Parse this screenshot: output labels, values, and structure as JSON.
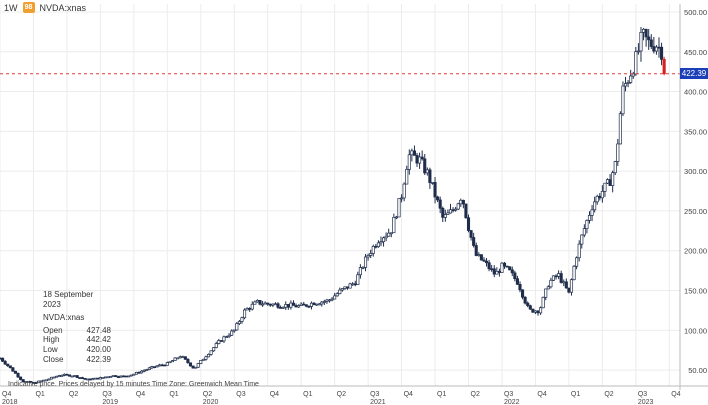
{
  "header": {
    "interval": "1W",
    "badge": "98",
    "symbol": "NVDA:xnas"
  },
  "price_tag": "422.39",
  "info_panel": {
    "date": "18 September 2023",
    "symbol": "NVDA:xnas",
    "rows": [
      {
        "label": "Open",
        "value": "427.48"
      },
      {
        "label": "High",
        "value": "442.42"
      },
      {
        "label": "Low",
        "value": "420.00"
      },
      {
        "label": "Close",
        "value": "422.39"
      }
    ]
  },
  "footnote": "Indicative price. Prices delayed by 15 minutes   Time Zone: Greenwich Mean Time",
  "colors": {
    "up": "#1f2d4a",
    "down": "#1f2d4a",
    "last_candle": "#d62020",
    "price_line": "#e03c3c",
    "price_tag": "#1a3fb8",
    "grid": "#ececec"
  },
  "chart_data": {
    "type": "candlestick",
    "timeframe": "1W",
    "ylim": [
      30,
      510
    ],
    "y_ticks": [
      50,
      100,
      150,
      200,
      250,
      300,
      350,
      400,
      450,
      500
    ],
    "y_tick_labels": [
      "50.00",
      "100.00",
      "150.00",
      "200.00",
      "250.00",
      "300.00",
      "350.00",
      "400.00",
      "450.00",
      "500.00"
    ],
    "x_range": [
      2018.75,
      2023.83
    ],
    "quarter_ticks": [
      {
        "t": 2018.75,
        "q": "Q4",
        "year": "2018"
      },
      {
        "t": 2019.0,
        "q": "Q1",
        "year": ""
      },
      {
        "t": 2019.25,
        "q": "Q2",
        "year": ""
      },
      {
        "t": 2019.5,
        "q": "Q3",
        "year": "2019"
      },
      {
        "t": 2019.75,
        "q": "Q4",
        "year": ""
      },
      {
        "t": 2020.0,
        "q": "Q1",
        "year": ""
      },
      {
        "t": 2020.25,
        "q": "Q2",
        "year": "2020"
      },
      {
        "t": 2020.5,
        "q": "Q3",
        "year": ""
      },
      {
        "t": 2020.75,
        "q": "Q4",
        "year": ""
      },
      {
        "t": 2021.0,
        "q": "Q1",
        "year": ""
      },
      {
        "t": 2021.25,
        "q": "Q2",
        "year": ""
      },
      {
        "t": 2021.5,
        "q": "Q3",
        "year": "2021"
      },
      {
        "t": 2021.75,
        "q": "Q4",
        "year": ""
      },
      {
        "t": 2022.0,
        "q": "Q1",
        "year": ""
      },
      {
        "t": 2022.25,
        "q": "Q2",
        "year": ""
      },
      {
        "t": 2022.5,
        "q": "Q3",
        "year": "2022"
      },
      {
        "t": 2022.75,
        "q": "Q4",
        "year": ""
      },
      {
        "t": 2023.0,
        "q": "Q1",
        "year": ""
      },
      {
        "t": 2023.25,
        "q": "Q2",
        "year": ""
      },
      {
        "t": 2023.5,
        "q": "Q3",
        "year": "2023"
      },
      {
        "t": 2023.75,
        "q": "Q4",
        "year": ""
      }
    ],
    "last_price": 422.39,
    "close_path": [
      [
        2018.75,
        65
      ],
      [
        2018.83,
        52
      ],
      [
        2018.92,
        36
      ],
      [
        2019.0,
        34
      ],
      [
        2019.1,
        38
      ],
      [
        2019.2,
        44
      ],
      [
        2019.3,
        43
      ],
      [
        2019.4,
        38
      ],
      [
        2019.5,
        40
      ],
      [
        2019.58,
        43
      ],
      [
        2019.67,
        42
      ],
      [
        2019.75,
        45
      ],
      [
        2019.83,
        50
      ],
      [
        2019.92,
        55
      ],
      [
        2020.0,
        58
      ],
      [
        2020.1,
        68
      ],
      [
        2020.2,
        52
      ],
      [
        2020.3,
        70
      ],
      [
        2020.4,
        88
      ],
      [
        2020.5,
        100
      ],
      [
        2020.58,
        125
      ],
      [
        2020.67,
        135
      ],
      [
        2020.75,
        133
      ],
      [
        2020.83,
        132
      ],
      [
        2020.92,
        131
      ],
      [
        2021.0,
        130
      ],
      [
        2021.1,
        135
      ],
      [
        2021.2,
        137
      ],
      [
        2021.3,
        150
      ],
      [
        2021.4,
        160
      ],
      [
        2021.5,
        195
      ],
      [
        2021.58,
        215
      ],
      [
        2021.67,
        225
      ],
      [
        2021.75,
        270
      ],
      [
        2021.8,
        320
      ],
      [
        2021.88,
        315
      ],
      [
        2021.95,
        295
      ],
      [
        2022.0,
        270
      ],
      [
        2022.06,
        240
      ],
      [
        2022.13,
        250
      ],
      [
        2022.2,
        270
      ],
      [
        2022.25,
        230
      ],
      [
        2022.3,
        195
      ],
      [
        2022.37,
        185
      ],
      [
        2022.45,
        170
      ],
      [
        2022.5,
        180
      ],
      [
        2022.55,
        175
      ],
      [
        2022.62,
        160
      ],
      [
        2022.7,
        125
      ],
      [
        2022.78,
        125
      ],
      [
        2022.85,
        160
      ],
      [
        2022.92,
        170
      ],
      [
        2023.0,
        146
      ],
      [
        2023.05,
        190
      ],
      [
        2023.1,
        220
      ],
      [
        2023.18,
        260
      ],
      [
        2023.25,
        275
      ],
      [
        2023.3,
        285
      ],
      [
        2023.35,
        310
      ],
      [
        2023.4,
        400
      ],
      [
        2023.45,
        420
      ],
      [
        2023.5,
        440
      ],
      [
        2023.55,
        470
      ],
      [
        2023.6,
        460
      ],
      [
        2023.65,
        460
      ],
      [
        2023.7,
        450
      ],
      [
        2023.73,
        422
      ]
    ]
  }
}
